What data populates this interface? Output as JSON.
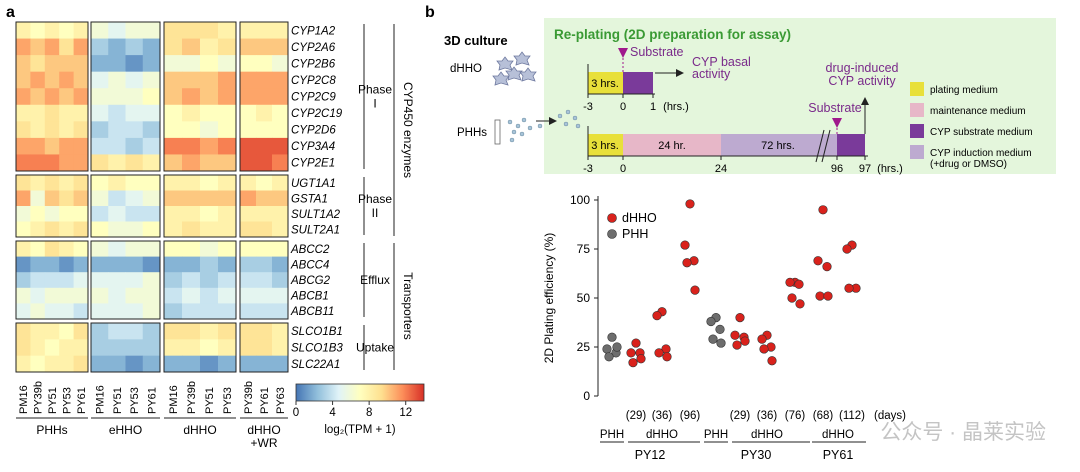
{
  "panel_a": {
    "label": "a",
    "genes": [
      "CYP1A2",
      "CYP2A6",
      "CYP2B6",
      "CYP2C8",
      "CYP2C9",
      "CYP2C19",
      "CYP2D6",
      "CYP3A4",
      "CYP2E1",
      "UGT1A1",
      "GSTA1",
      "SULT1A2",
      "SULT2A1",
      "ABCC2",
      "ABCC4",
      "ABCG2",
      "ABCB1",
      "ABCB11",
      "SLCO1B1",
      "SLCO1B3",
      "SLC22A1"
    ],
    "column_labels": [
      "PM16",
      "PY39b",
      "PY51",
      "PY53",
      "PY61",
      "PM16",
      "PY51",
      "PY53",
      "PY61",
      "PM16",
      "PY39b",
      "PY51",
      "PY53",
      "PY39b",
      "PY61",
      "PY63"
    ],
    "group_labels": [
      "PHHs",
      "eHHO",
      "dHHO",
      "dHHO\n+WR"
    ],
    "subgroups": [
      "Phase\nI",
      "Phase\nII",
      "Efflux",
      "Uptake"
    ],
    "category_labels": [
      "CYP450 enzymes",
      "Transporters"
    ],
    "colorbar": {
      "ticks": [
        "0",
        "4",
        "8",
        "12"
      ],
      "label": "log₂(TPM + 1)",
      "min": 0,
      "max": 14,
      "colors": [
        "#4575b4",
        "#91bfdb",
        "#e0f3f8",
        "#ffffbf",
        "#fee090",
        "#fc8d59",
        "#d73027"
      ]
    },
    "values": [
      [
        8,
        7,
        8,
        7,
        8,
        6,
        5,
        6,
        6,
        9,
        9,
        9,
        8,
        8,
        8,
        8
      ],
      [
        11,
        10,
        11,
        9,
        11,
        3,
        2,
        3,
        2,
        9,
        10,
        8,
        9,
        10,
        10,
        10
      ],
      [
        10,
        9,
        10,
        10,
        10,
        2,
        2,
        1,
        2,
        6,
        6,
        7,
        6,
        7,
        7,
        6
      ],
      [
        10,
        11,
        10,
        11,
        10,
        5,
        6,
        5,
        6,
        10,
        10,
        10,
        11,
        11,
        11,
        11
      ],
      [
        11,
        10,
        11,
        10,
        11,
        6,
        6,
        6,
        7,
        10,
        11,
        10,
        11,
        11,
        11,
        11
      ],
      [
        8,
        8,
        9,
        8,
        8,
        5,
        4,
        5,
        5,
        7,
        8,
        7,
        7,
        7,
        8,
        7
      ],
      [
        9,
        8,
        9,
        8,
        9,
        3,
        4,
        4,
        3,
        7,
        7,
        6,
        7,
        7,
        7,
        7
      ],
      [
        11,
        11,
        10,
        11,
        11,
        4,
        4,
        3,
        4,
        12,
        12,
        11,
        12,
        13,
        13,
        13
      ],
      [
        12,
        12,
        12,
        11,
        11,
        9,
        8,
        9,
        8,
        10,
        11,
        10,
        10,
        13,
        13,
        12
      ],
      [
        9,
        8,
        9,
        8,
        9,
        7,
        8,
        7,
        7,
        8,
        8,
        7,
        8,
        8,
        7,
        8
      ],
      [
        11,
        6,
        10,
        9,
        10,
        6,
        4,
        5,
        6,
        10,
        10,
        10,
        10,
        11,
        10,
        10
      ],
      [
        6,
        7,
        6,
        7,
        7,
        4,
        5,
        4,
        4,
        8,
        8,
        7,
        8,
        8,
        8,
        8
      ],
      [
        7,
        8,
        9,
        8,
        9,
        7,
        6,
        6,
        7,
        8,
        9,
        8,
        8,
        9,
        9,
        8
      ],
      [
        8,
        7,
        9,
        8,
        7,
        6,
        5,
        6,
        6,
        7,
        7,
        6,
        7,
        7,
        7,
        7
      ],
      [
        1,
        2,
        2,
        1,
        2,
        2,
        2,
        2,
        1,
        2,
        2,
        3,
        2,
        3,
        3,
        2
      ],
      [
        3,
        4,
        4,
        4,
        5,
        5,
        5,
        5,
        6,
        3,
        4,
        3,
        4,
        4,
        4,
        3
      ],
      [
        6,
        5,
        6,
        6,
        6,
        6,
        5,
        6,
        6,
        4,
        5,
        4,
        5,
        5,
        5,
        5
      ],
      [
        5,
        6,
        5,
        5,
        4,
        5,
        5,
        5,
        6,
        3,
        4,
        4,
        4,
        4,
        4,
        4
      ],
      [
        9,
        8,
        8,
        7,
        9,
        3,
        4,
        4,
        3,
        9,
        9,
        8,
        9,
        9,
        9,
        8
      ],
      [
        9,
        8,
        7,
        8,
        8,
        3,
        3,
        3,
        3,
        8,
        8,
        7,
        8,
        9,
        9,
        8
      ],
      [
        8,
        7,
        8,
        8,
        9,
        2,
        2,
        1,
        2,
        2,
        2,
        1,
        2,
        2,
        2,
        2
      ]
    ]
  },
  "panel_b": {
    "label": "b",
    "title_3d": "3D culture",
    "title_replating": "Re-plating (2D preparation for assay)",
    "dhho": "dHHO",
    "phhs": "PHHs",
    "substrate": "Substrate",
    "cyp_basal": "CYP basal\nactivity",
    "drug_induced": "drug-induced\nCYP activity",
    "timeline1": {
      "box": "3 hrs.",
      "ticks": [
        "-3",
        "0",
        "1"
      ],
      "unit": "(hrs.)"
    },
    "timeline2": {
      "boxes": [
        "3 hrs.",
        "24 hr.",
        "72 hrs."
      ],
      "ticks": [
        "-3",
        "0",
        "24",
        "96",
        "97"
      ],
      "unit": "(hrs.)"
    },
    "legend": [
      {
        "label": "plating medium",
        "color": "#e8e03a"
      },
      {
        "label": "maintenance medium",
        "color": "#e7b7c8"
      },
      {
        "label": "CYP substrate medium",
        "color": "#7a3a9a"
      },
      {
        "label": "CYP induction medium\n(+drug or DMSO)",
        "color": "#bdaad0"
      }
    ]
  },
  "chart_data": {
    "type": "scatter",
    "ylabel": "2D Plating efficiency (%)",
    "ylim": [
      0,
      100
    ],
    "yticks": [
      0,
      25,
      50,
      75,
      100
    ],
    "legend_placement": "top-left",
    "series": [
      {
        "name": "dHHO",
        "color": "#d9221c"
      },
      {
        "name": "PHH",
        "color": "#6d6d6d"
      }
    ],
    "groups": [
      {
        "series": "PHH",
        "points": [
          30,
          24,
          22,
          20,
          25
        ]
      },
      {
        "series": "dHHO",
        "days": "(29)",
        "points": [
          27,
          22,
          22,
          17,
          19
        ]
      },
      {
        "series": "dHHO",
        "days": "(36)",
        "points": [
          43,
          41,
          24,
          22,
          20
        ]
      },
      {
        "series": "dHHO",
        "days": "(96)",
        "points": [
          98,
          77,
          69,
          68,
          54
        ]
      },
      {
        "series": "PHH",
        "points": [
          40,
          38,
          34,
          29,
          27
        ]
      },
      {
        "series": "dHHO",
        "days": "(29)",
        "points": [
          40,
          31,
          30,
          26,
          28
        ]
      },
      {
        "series": "dHHO",
        "days": "(36)",
        "points": [
          31,
          29,
          25,
          24,
          18
        ]
      },
      {
        "series": "dHHO",
        "days": "(76)",
        "points": [
          58,
          58,
          57,
          50,
          47
        ]
      },
      {
        "series": "dHHO",
        "days": "(68)",
        "points": [
          95,
          69,
          66,
          51,
          51
        ]
      },
      {
        "series": "dHHO",
        "days": "(112)",
        "points": [
          77,
          75,
          55,
          55
        ]
      }
    ],
    "days_unit": "(days)",
    "sublabels": [
      "PHH",
      "dHHO",
      "PHH",
      "dHHO",
      "dHHO"
    ],
    "donors": [
      "PY12",
      "PY30",
      "PY61"
    ]
  },
  "watermark": "公众号 · 晶莱实验"
}
